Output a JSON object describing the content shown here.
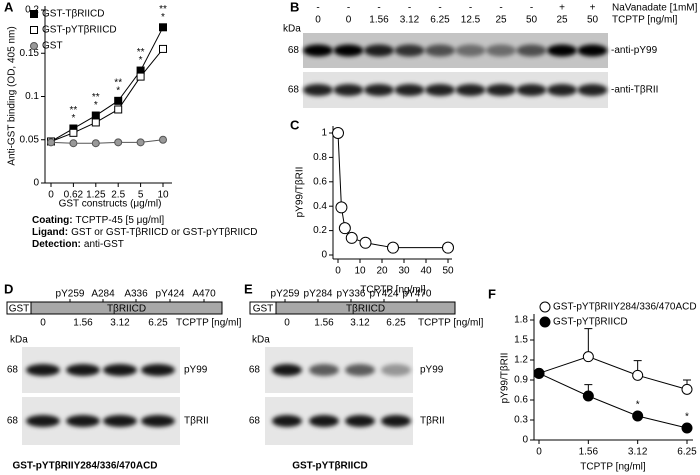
{
  "chart_data": [
    {
      "type": "line",
      "panel": "A",
      "ylabel": "Anti-GST binding (OD, 405 nm)",
      "xlabel": "GST constructs (μg/ml)",
      "categories": [
        "0",
        "0.62",
        "1.25",
        "2.5",
        "5",
        "10"
      ],
      "series": [
        {
          "name": "GST-TβRIICD",
          "color": "#000000",
          "fill": "#000000",
          "marker": "square",
          "values": [
            0.048,
            0.063,
            0.078,
            0.095,
            0.13,
            0.18
          ]
        },
        {
          "name": "GST-pYTβRIICD",
          "color": "#000000",
          "fill": "#ffffff",
          "marker": "square",
          "values": [
            0.048,
            0.058,
            0.07,
            0.085,
            0.123,
            0.155
          ]
        },
        {
          "name": "GST",
          "color": "#555555",
          "fill": "#999999",
          "marker": "circle",
          "values": [
            0.047,
            0.046,
            0.046,
            0.047,
            0.047,
            0.05
          ]
        }
      ],
      "annotations": [
        null,
        [
          "**",
          "*"
        ],
        [
          "**",
          "*"
        ],
        [
          "**",
          "*"
        ],
        [
          "**",
          "*"
        ],
        [
          "**",
          "*"
        ]
      ],
      "ylim": [
        0,
        0.2
      ],
      "yticks": [
        0,
        0.05,
        0.1,
        0.15,
        0.2
      ],
      "legend": "upper left"
    },
    {
      "type": "line",
      "panel": "C",
      "ylabel": "pY99/TβRII",
      "xlabel": "TCPTP [ng/ml]",
      "x": [
        0,
        1.56,
        3.12,
        6.25,
        12.5,
        25,
        50
      ],
      "series": [
        {
          "color": "#000000",
          "fill": "#ffffff",
          "marker": "circle",
          "values": [
            1.0,
            0.39,
            0.22,
            0.14,
            0.1,
            0.06,
            0.06
          ]
        }
      ],
      "xlim": [
        0,
        50
      ],
      "xticks": [
        0,
        10,
        20,
        30,
        40,
        50
      ],
      "ylim": [
        0,
        1
      ],
      "yticks": [
        0,
        0.2,
        0.4,
        0.6,
        0.8,
        1
      ]
    },
    {
      "type": "line",
      "panel": "F",
      "ylabel": "pY99/TβRII",
      "xlabel": "TCPTP [ng/ml]",
      "categories": [
        "0",
        "1.56",
        "3.12",
        "6.25"
      ],
      "series": [
        {
          "name": "GST-pYTβRIIY284/336/470ACD",
          "color": "#000000",
          "fill": "#ffffff",
          "marker": "circle",
          "values": [
            1.0,
            1.25,
            0.97,
            0.76
          ],
          "errors": [
            0,
            0.42,
            0.22,
            0.14
          ]
        },
        {
          "name": "GST-pYTβRIICD",
          "color": "#000000",
          "fill": "#000000",
          "marker": "circle",
          "values": [
            1.0,
            0.66,
            0.36,
            0.18
          ],
          "errors": [
            0,
            0.17,
            0.05,
            0.02
          ],
          "annotations": [
            null,
            null,
            "*",
            "*"
          ]
        }
      ],
      "ylim": [
        0,
        1.8
      ],
      "yticks": [
        0,
        0.3,
        0.6,
        0.9,
        1.2,
        1.5,
        1.8
      ],
      "legend": "upper left"
    }
  ],
  "notes": [
    {
      "label": "Coating:",
      "text": "TCPTP-45 [5 μg/ml]"
    },
    {
      "label": "Ligand:",
      "text": "GST or GST-TβRIICD or GST-pYTβRIICD"
    },
    {
      "label": "Detection:",
      "text": "anti-GST"
    }
  ],
  "blots": [
    {
      "panel": "B",
      "unit_label": "kDa",
      "header_rows": [
        {
          "label": "NaVanadate [1mM]",
          "values": [
            "-",
            "-",
            "-",
            "-",
            "-",
            "-",
            "-",
            "-",
            "+",
            "+"
          ]
        },
        {
          "label": "TCPTP [ng/ml]",
          "values": [
            "0",
            "0",
            "1.56",
            "3.12",
            "6.25",
            "12.5",
            "25",
            "50",
            "25",
            "50"
          ]
        }
      ],
      "bands": [
        {
          "marker": "68",
          "label": "-anti-pY99"
        },
        {
          "marker": "68",
          "label": "-anti-TβRII"
        }
      ]
    },
    {
      "panel": "D",
      "unit_label": "kDa",
      "construct": {
        "tag": "GST",
        "domain": "TβRIICD",
        "sites": [
          "pY259",
          "A284",
          "A336",
          "pY424",
          "A470"
        ]
      },
      "header_rows": [
        {
          "label": "TCPTP [ng/ml]",
          "values": [
            "0",
            "1.56",
            "3.12",
            "6.25"
          ]
        }
      ],
      "bands": [
        {
          "marker": "68",
          "label": "pY99"
        },
        {
          "marker": "68",
          "label": "TβRII"
        }
      ],
      "caption": "GST-pYTβRIIY284/336/470ACD"
    },
    {
      "panel": "E",
      "unit_label": "kDa",
      "construct": {
        "tag": "GST",
        "domain": "TβRIICD",
        "sites": [
          "pY259",
          "pY284",
          "pY336",
          "pY424",
          "pY470"
        ]
      },
      "header_rows": [
        {
          "label": "TCPTP [ng/ml]",
          "values": [
            "0",
            "1.56",
            "3.12",
            "6.25"
          ]
        }
      ],
      "bands": [
        {
          "marker": "68",
          "label": "pY99"
        },
        {
          "marker": "68",
          "label": "TβRII"
        }
      ],
      "caption": "GST-pYTβRIICD"
    }
  ]
}
